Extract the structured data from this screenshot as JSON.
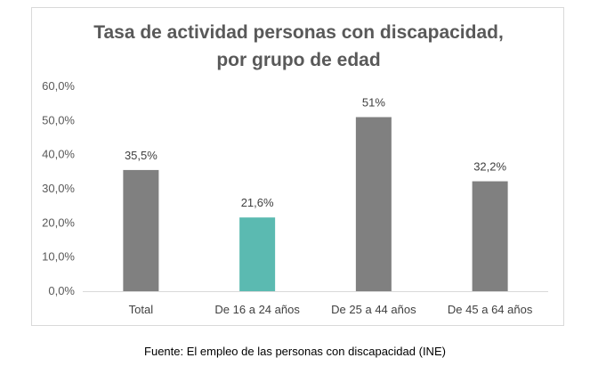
{
  "chart_data": {
    "type": "bar",
    "title_lines": [
      "Tasa de actividad personas con discapacidad,",
      "por grupo  de edad"
    ],
    "categories": [
      "Total",
      "De 16 a 24 años",
      "De 25 a 44 años",
      "De 45 a 64 años"
    ],
    "values": [
      35.5,
      21.6,
      51,
      32.2
    ],
    "data_labels": [
      "35,5%",
      "21,6%",
      "51%",
      "32,2%"
    ],
    "bar_colors": [
      "#808080",
      "#5bbab1",
      "#808080",
      "#808080"
    ],
    "ylim": [
      0,
      60
    ],
    "yticks": [
      0,
      10,
      20,
      30,
      40,
      50,
      60
    ],
    "ytick_labels": [
      "0,0%",
      "10,0%",
      "20,0%",
      "30,0%",
      "40,0%",
      "50,0%",
      "60,0%"
    ],
    "grid": false
  },
  "source_text": "Fuente: El empleo de las personas con discapacidad (INE)"
}
